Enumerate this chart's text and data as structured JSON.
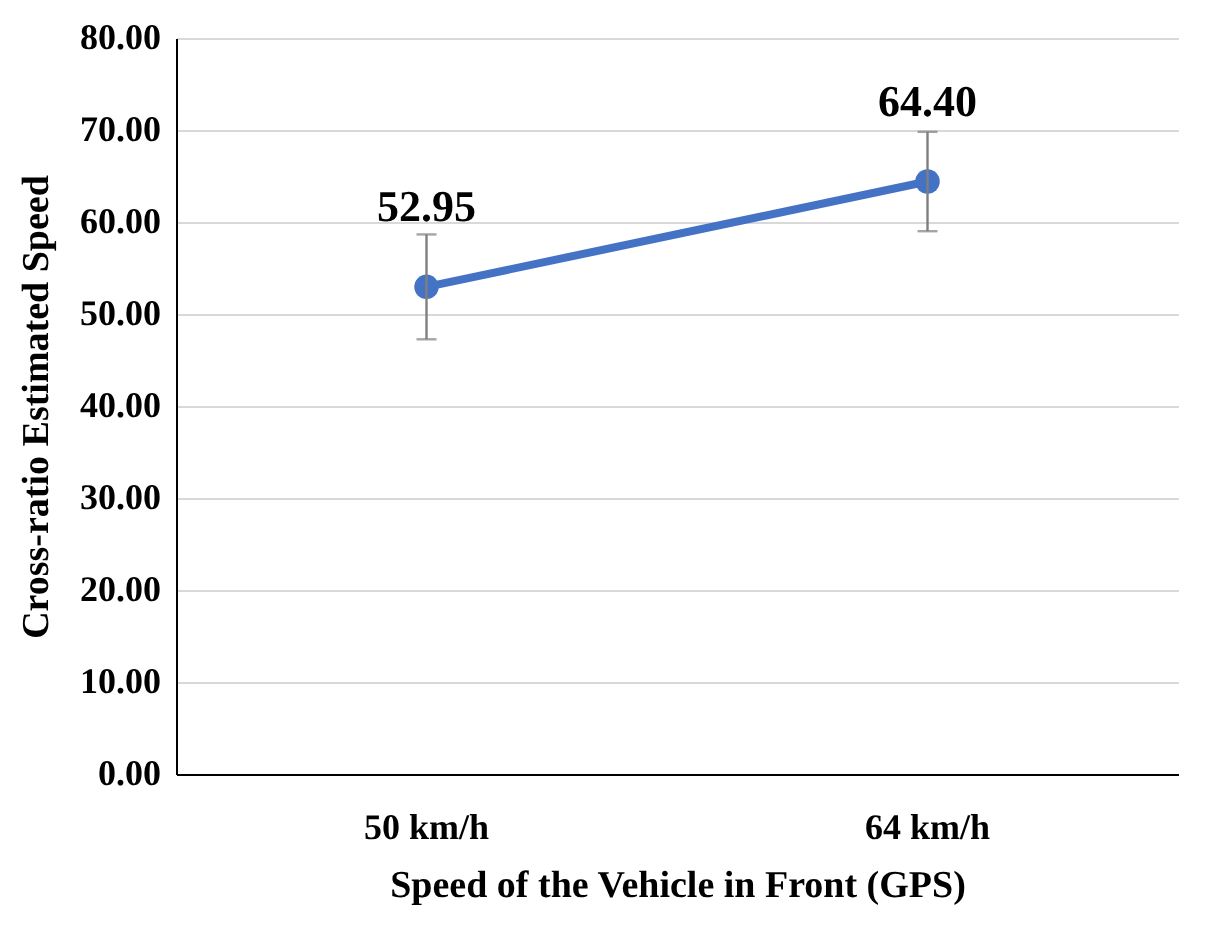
{
  "chart_data": {
    "type": "line",
    "xlabel": "Speed of the Vehicle in Front (GPS)",
    "ylabel": "Cross-ratio Estimated Speed",
    "categories": [
      "50 km/h",
      "64 km/h"
    ],
    "series": [
      {
        "color": "#4472c4",
        "values": [
          52.95,
          64.4
        ],
        "errors": [
          5.7,
          5.4
        ],
        "value_labels": [
          "52.95",
          "64.40"
        ]
      }
    ],
    "ylim": [
      0,
      80
    ],
    "yticks": [
      {
        "value": 0,
        "label": "0.00"
      },
      {
        "value": 10,
        "label": "10.00"
      },
      {
        "value": 20,
        "label": "20.00"
      },
      {
        "value": 30,
        "label": "30.00"
      },
      {
        "value": 40,
        "label": "40.00"
      },
      {
        "value": 50,
        "label": "50.00"
      },
      {
        "value": 60,
        "label": "60.00"
      },
      {
        "value": 70,
        "label": "70.00"
      },
      {
        "value": 80,
        "label": "80.00"
      }
    ],
    "grid": "y",
    "marker": "circle",
    "line_style": "solid"
  }
}
